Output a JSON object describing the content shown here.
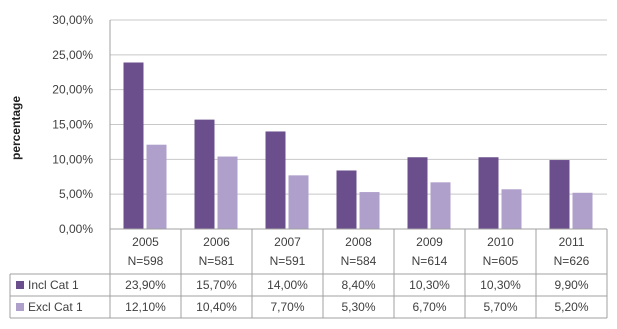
{
  "chart_data": {
    "type": "bar",
    "ylabel": "percentage",
    "ylim": [
      0,
      30
    ],
    "y_ticks": [
      "30,00%",
      "25,00%",
      "20,00%",
      "15,00%",
      "10,00%",
      "5,00%",
      "0,00%"
    ],
    "categories": [
      "2005",
      "2006",
      "2007",
      "2008",
      "2009",
      "2010",
      "2011"
    ],
    "sample_sizes": [
      "N=598",
      "N=581",
      "N=591",
      "N=584",
      "N=614",
      "N=605",
      "N=626"
    ],
    "gridlines": true,
    "legend": "data table",
    "series": [
      {
        "name": "Incl Cat 1",
        "color": "#6b4f8c",
        "values": [
          23.9,
          15.7,
          14.0,
          8.4,
          10.3,
          10.3,
          9.9
        ],
        "labels": [
          "23,90%",
          "15,70%",
          "14,00%",
          "8,40%",
          "10,30%",
          "10,30%",
          "9,90%"
        ]
      },
      {
        "name": "Excl Cat 1",
        "color": "#ae9fcb",
        "values": [
          12.1,
          10.4,
          7.7,
          5.3,
          6.7,
          5.7,
          5.2
        ],
        "labels": [
          "12,10%",
          "10,40%",
          "7,70%",
          "5,30%",
          "6,70%",
          "5,70%",
          "5,20%"
        ]
      }
    ]
  }
}
